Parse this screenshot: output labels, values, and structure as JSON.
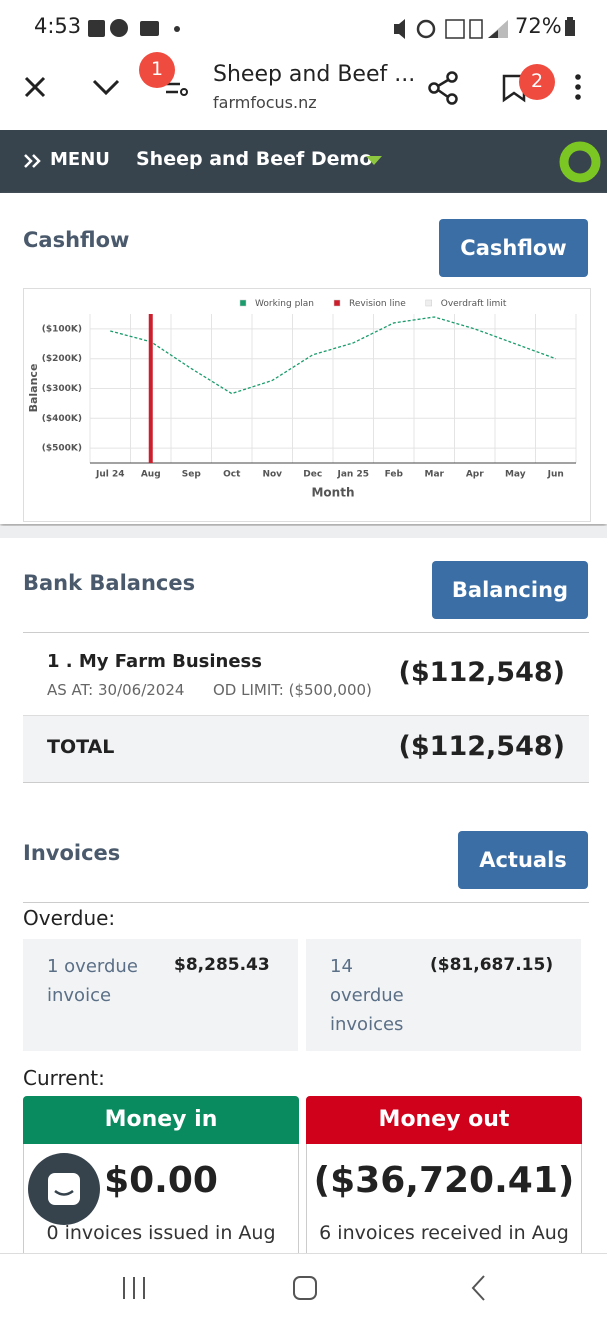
{
  "status_bar": {
    "time": "4:53",
    "battery": "72%"
  },
  "browser": {
    "title": "Sheep and Beef ...",
    "url": "farmfocus.nz",
    "badges": [
      "1",
      "2"
    ]
  },
  "app_nav": {
    "menu": "MENU",
    "farm": "Sheep and Beef Demo"
  },
  "cashflow": {
    "title": "Cashflow",
    "button": "Cashflow"
  },
  "chart_data": {
    "type": "line",
    "x_label": "Month",
    "y_label": "Balance",
    "categories": [
      "Jul 24",
      "Aug",
      "Sep",
      "Oct",
      "Nov",
      "Dec",
      "Jan 25",
      "Feb",
      "Mar",
      "Apr",
      "May",
      "Jun"
    ],
    "series": [
      {
        "name": "Working plan",
        "color": "#1a9c6c",
        "values": [
          -107000,
          -143000,
          -233000,
          -317000,
          -273000,
          -187000,
          -147000,
          -80000,
          -60000,
          -100000,
          -150000,
          -200000
        ]
      }
    ],
    "revision_line": {
      "name": "Revision line",
      "color": "#cc1f2b",
      "x": "Aug"
    },
    "overdraft_limit": {
      "name": "Overdraft limit",
      "color": "#eeeeee"
    },
    "ylim": [
      -550000,
      -50000
    ],
    "yticks": [
      {
        "value": -100000,
        "label": "($100K)"
      },
      {
        "value": -200000,
        "label": "($200K)"
      },
      {
        "value": -300000,
        "label": "($300K)"
      },
      {
        "value": -400000,
        "label": "($400K)"
      },
      {
        "value": -500000,
        "label": "($500K)"
      }
    ],
    "grid": true
  },
  "bank": {
    "title": "Bank Balances",
    "button": "Balancing",
    "rows": [
      {
        "name": "1 . My Farm Business",
        "as_at": "AS AT: 30/06/2024",
        "od_limit": "OD LIMIT: ($500,000)",
        "balance": "($112,548)"
      }
    ],
    "total_label": "TOTAL",
    "total": "($112,548)"
  },
  "invoices": {
    "title": "Invoices",
    "button": "Actuals",
    "overdue_label": "Overdue:",
    "overdue": [
      {
        "text": "1 overdue invoice",
        "amount": "$8,285.43"
      },
      {
        "text": "14 overdue invoices",
        "amount": "($81,687.15)"
      }
    ],
    "current_label": "Current:",
    "money_in": {
      "title": "Money in",
      "amount": "$0.00",
      "note": "0 invoices issued in Aug"
    },
    "money_out": {
      "title": "Money out",
      "amount": "($36,720.41)",
      "note": "6 invoices received in Aug"
    }
  }
}
